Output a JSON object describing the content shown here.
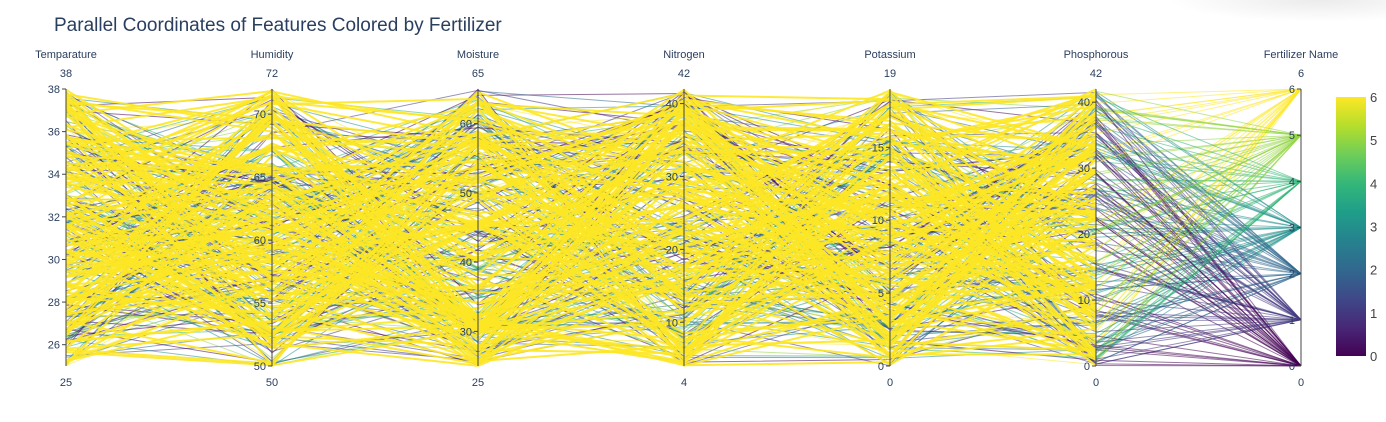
{
  "title": "Parallel Coordinates of Features Colored by Fertilizer",
  "chart_data": {
    "type": "parallel_coordinates",
    "title": "Parallel Coordinates of Features Colored by Fertilizer",
    "color_variable": "Fertilizer Name",
    "colorscale": "viridis",
    "colorscale_stops": [
      "#440154",
      "#482878",
      "#3e4989",
      "#31688e",
      "#26828e",
      "#1f9e89",
      "#35b779",
      "#6ece58",
      "#b5de2b",
      "#fde725"
    ],
    "color_range": [
      0,
      6
    ],
    "colorbar_ticks": [
      0,
      1,
      2,
      3,
      4,
      5,
      6
    ],
    "dimensions": [
      {
        "label": "Temparature",
        "range": [
          25,
          38
        ],
        "ticks": [
          26,
          28,
          30,
          32,
          34,
          36,
          38
        ],
        "min_label": "25",
        "max_label": "38"
      },
      {
        "label": "Humidity",
        "range": [
          50,
          72
        ],
        "ticks": [
          50,
          55,
          60,
          65,
          70
        ],
        "min_label": "50",
        "max_label": "72"
      },
      {
        "label": "Moisture",
        "range": [
          25,
          65
        ],
        "ticks": [
          30,
          40,
          50,
          60
        ],
        "min_label": "25",
        "max_label": "65"
      },
      {
        "label": "Nitrogen",
        "range": [
          4,
          42
        ],
        "ticks": [
          10,
          20,
          30,
          40
        ],
        "min_label": "4",
        "max_label": "42"
      },
      {
        "label": "Potassium",
        "range": [
          0,
          19
        ],
        "ticks": [
          0,
          5,
          10,
          15
        ],
        "min_label": "0",
        "max_label": "19"
      },
      {
        "label": "Phosphorous",
        "range": [
          0,
          42
        ],
        "ticks": [
          0,
          10,
          20,
          30,
          40
        ],
        "min_label": "0",
        "max_label": "42"
      },
      {
        "label": "Fertilizer Name",
        "range": [
          0,
          6
        ],
        "ticks": [
          0,
          1,
          2,
          3,
          4,
          5,
          6
        ],
        "min_label": "0",
        "max_label": "6"
      }
    ],
    "line_color_dominant": "#fde725"
  }
}
